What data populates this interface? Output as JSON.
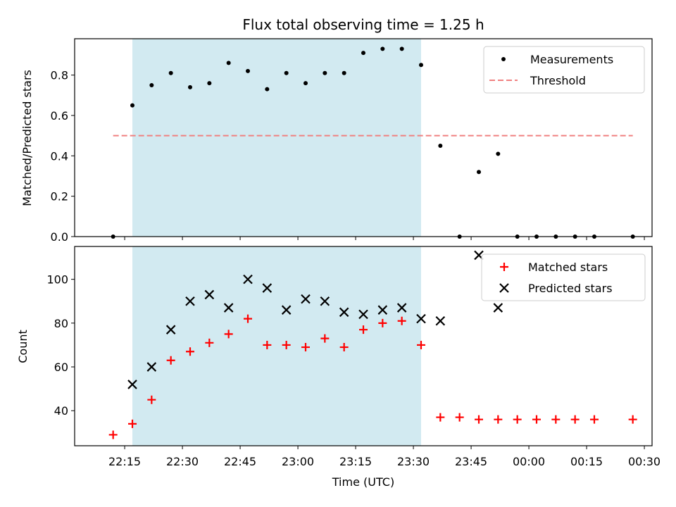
{
  "chart_data": [
    {
      "type": "scatter",
      "title": "Flux total observing time = 1.25 h",
      "xlabel": "",
      "ylabel": "Matched/Predicted stars",
      "ylim": [
        0,
        0.98
      ],
      "yticks": [
        0.0,
        0.2,
        0.4,
        0.6,
        0.8
      ],
      "ytick_labels": [
        "0.0",
        "0.2",
        "0.4",
        "0.6",
        "0.8"
      ],
      "xlim": [
        "22:02",
        "00:32"
      ],
      "shaded_span": {
        "x_start": "22:17",
        "x_end": "23:32",
        "color": "#add8e6"
      },
      "legend": {
        "placement": "top-right",
        "entries": [
          "Measurements",
          "Threshold"
        ]
      },
      "series": [
        {
          "name": "Measurements",
          "marker": "dot",
          "color": "#000000",
          "x": [
            "22:12",
            "22:17",
            "22:22",
            "22:27",
            "22:32",
            "22:37",
            "22:42",
            "22:47",
            "22:52",
            "22:57",
            "23:02",
            "23:07",
            "23:12",
            "23:17",
            "23:22",
            "23:27",
            "23:32",
            "23:37",
            "23:42",
            "23:47",
            "23:52",
            "23:57",
            "00:02",
            "00:07",
            "00:12",
            "00:17",
            "00:27"
          ],
          "y": [
            0.0,
            0.65,
            0.75,
            0.81,
            0.74,
            0.76,
            0.86,
            0.82,
            0.73,
            0.81,
            0.76,
            0.81,
            0.81,
            0.91,
            0.93,
            0.93,
            0.85,
            0.45,
            0.0,
            0.32,
            0.41,
            0.0,
            0.0,
            0.0,
            0.0,
            0.0,
            0.0
          ]
        },
        {
          "name": "Threshold",
          "style": "dashed-line",
          "color": "#f08080",
          "x": [
            "22:12",
            "00:27"
          ],
          "y": [
            0.5,
            0.5
          ]
        }
      ]
    },
    {
      "type": "scatter",
      "title": "",
      "xlabel": "Time (UTC)",
      "ylabel": "Count",
      "ylim": [
        24,
        115
      ],
      "yticks": [
        40,
        60,
        80,
        100
      ],
      "ytick_labels": [
        "40",
        "60",
        "80",
        "100"
      ],
      "xlim": [
        "22:02",
        "00:32"
      ],
      "xticks": [
        "22:15",
        "22:30",
        "22:45",
        "23:00",
        "23:15",
        "23:30",
        "23:45",
        "00:00",
        "00:15",
        "00:30"
      ],
      "shaded_span": {
        "x_start": "22:17",
        "x_end": "23:32",
        "color": "#add8e6"
      },
      "legend": {
        "placement": "top-right",
        "entries": [
          "Matched stars",
          "Predicted stars"
        ]
      },
      "series": [
        {
          "name": "Matched stars",
          "marker": "plus",
          "color": "#ff0000",
          "x": [
            "22:12",
            "22:17",
            "22:22",
            "22:27",
            "22:32",
            "22:37",
            "22:42",
            "22:47",
            "22:52",
            "22:57",
            "23:02",
            "23:07",
            "23:12",
            "23:17",
            "23:22",
            "23:27",
            "23:32",
            "23:37",
            "23:42",
            "23:47",
            "23:52",
            "23:57",
            "00:02",
            "00:07",
            "00:12",
            "00:17",
            "00:27"
          ],
          "y": [
            29,
            34,
            45,
            63,
            67,
            71,
            75,
            82,
            70,
            70,
            69,
            73,
            69,
            77,
            80,
            81,
            70,
            37,
            37,
            36,
            36,
            36,
            36,
            36,
            36,
            36,
            36
          ]
        },
        {
          "name": "Predicted stars",
          "marker": "x",
          "color": "#000000",
          "x": [
            "22:17",
            "22:22",
            "22:27",
            "22:32",
            "22:37",
            "22:42",
            "22:47",
            "22:52",
            "22:57",
            "23:02",
            "23:07",
            "23:12",
            "23:17",
            "23:22",
            "23:27",
            "23:32",
            "23:37",
            "23:47",
            "23:52"
          ],
          "y": [
            52,
            60,
            77,
            90,
            93,
            87,
            100,
            96,
            86,
            91,
            90,
            85,
            84,
            86,
            87,
            82,
            81,
            111,
            87
          ]
        }
      ]
    }
  ]
}
